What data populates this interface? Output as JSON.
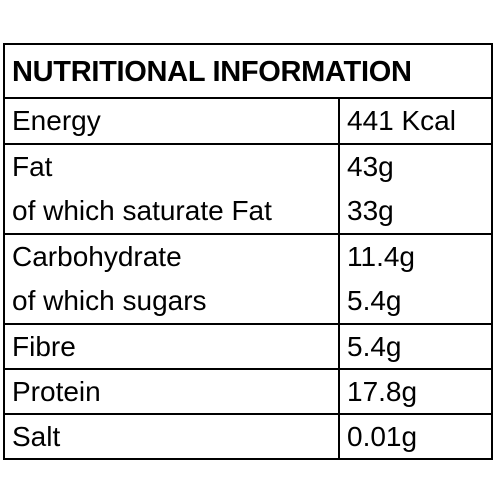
{
  "title": "NUTRITIONAL INFORMATION",
  "rows": [
    {
      "label": "Energy",
      "value": "441 Kcal"
    },
    {
      "label": "Fat",
      "value": "43g"
    },
    {
      "label": "of which saturate Fat",
      "value": "33g"
    },
    {
      "label": "Carbohydrate",
      "value": "11.4g"
    },
    {
      "label": "of which sugars",
      "value": "5.4g"
    },
    {
      "label": "Fibre",
      "value": "5.4g"
    },
    {
      "label": "Protein",
      "value": "17.8g"
    },
    {
      "label": "Salt",
      "value": "0.01g"
    }
  ]
}
